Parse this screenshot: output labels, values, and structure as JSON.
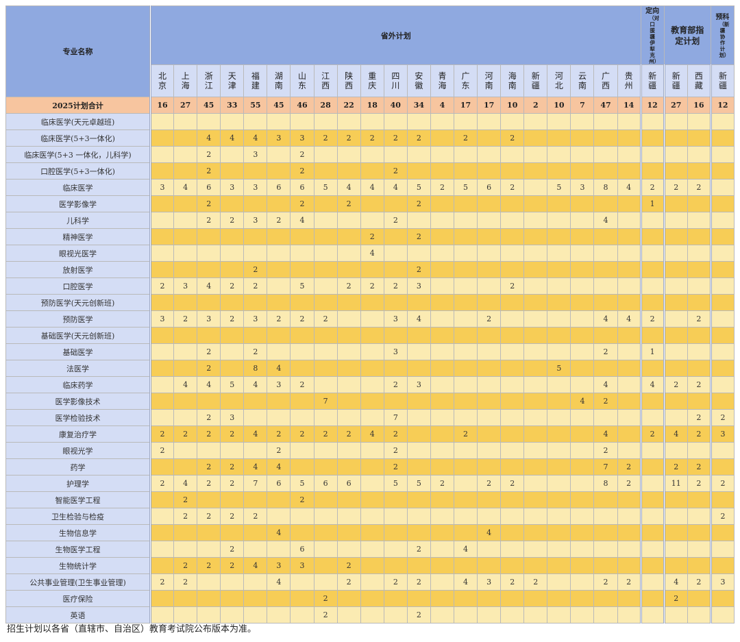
{
  "header": {
    "major_col": "专业名称",
    "group_outside": "省外计划",
    "group_targeted": "定向",
    "group_targeted_sub": "（对口援疆伊犁克州）",
    "group_ministry": "教育部指定计划",
    "group_prep": "预科",
    "group_prep_sub": "（新疆协作计划）",
    "provinces": [
      "北京",
      "上海",
      "浙江",
      "天津",
      "福建",
      "湖南",
      "山东",
      "江西",
      "陕西",
      "重庆",
      "四川",
      "安徽",
      "青海",
      "广东",
      "河南",
      "海南",
      "新疆",
      "河北",
      "云南",
      "广西",
      "贵州"
    ],
    "targeted_provinces": [
      "新疆"
    ],
    "ministry_provinces": [
      "新疆",
      "西藏"
    ],
    "prep_provinces": [
      "新疆"
    ]
  },
  "total": {
    "label": "2025计划合计",
    "values": [
      "16",
      "27",
      "45",
      "33",
      "55",
      "45",
      "46",
      "28",
      "22",
      "18",
      "40",
      "34",
      "4",
      "17",
      "17",
      "10",
      "2",
      "10",
      "7",
      "47",
      "14",
      "12",
      "27",
      "16",
      "12"
    ]
  },
  "rows": [
    {
      "name": "临床医学(天元卓越班)",
      "values": [
        "",
        "",
        "",
        "",
        "",
        "",
        "",
        "",
        "",
        "",
        "",
        "",
        "",
        "",
        "",
        "",
        "",
        "",
        "",
        "",
        "",
        "",
        "",
        "",
        ""
      ]
    },
    {
      "name": "临床医学(5+3一体化)",
      "values": [
        "",
        "",
        "4",
        "4",
        "4",
        "3",
        "3",
        "2",
        "2",
        "2",
        "2",
        "2",
        "",
        "2",
        "",
        "2",
        "",
        "",
        "",
        "",
        "",
        "",
        "",
        "",
        ""
      ]
    },
    {
      "name": "临床医学(5+3 一体化，儿科学)",
      "values": [
        "",
        "",
        "2",
        "",
        "3",
        "",
        "2",
        "",
        "",
        "",
        "",
        "",
        "",
        "",
        "",
        "",
        "",
        "",
        "",
        "",
        "",
        "",
        "",
        "",
        ""
      ]
    },
    {
      "name": "口腔医学(5+3一体化)",
      "values": [
        "",
        "",
        "2",
        "",
        "",
        "",
        "2",
        "",
        "",
        "",
        "2",
        "",
        "",
        "",
        "",
        "",
        "",
        "",
        "",
        "",
        "",
        "",
        "",
        "",
        ""
      ]
    },
    {
      "name": "临床医学",
      "values": [
        "3",
        "4",
        "6",
        "3",
        "3",
        "6",
        "6",
        "5",
        "4",
        "4",
        "4",
        "5",
        "2",
        "5",
        "6",
        "2",
        "",
        "5",
        "3",
        "8",
        "4",
        "2",
        "2",
        "2",
        ""
      ]
    },
    {
      "name": "医学影像学",
      "values": [
        "",
        "",
        "2",
        "",
        "",
        "",
        "2",
        "",
        "2",
        "",
        "",
        "2",
        "",
        "",
        "",
        "",
        "",
        "",
        "",
        "",
        "",
        "1",
        "",
        "",
        ""
      ]
    },
    {
      "name": "儿科学",
      "values": [
        "",
        "",
        "2",
        "2",
        "3",
        "2",
        "4",
        "",
        "",
        "",
        "2",
        "",
        "",
        "",
        "",
        "",
        "",
        "",
        "",
        "4",
        "",
        "",
        "",
        "",
        ""
      ]
    },
    {
      "name": "精神医学",
      "values": [
        "",
        "",
        "",
        "",
        "",
        "",
        "",
        "",
        "",
        "2",
        "",
        "2",
        "",
        "",
        "",
        "",
        "",
        "",
        "",
        "",
        "",
        "",
        "",
        "",
        ""
      ]
    },
    {
      "name": "眼视光医学",
      "values": [
        "",
        "",
        "",
        "",
        "",
        "",
        "",
        "",
        "",
        "4",
        "",
        "",
        "",
        "",
        "",
        "",
        "",
        "",
        "",
        "",
        "",
        "",
        "",
        "",
        ""
      ]
    },
    {
      "name": "放射医学",
      "values": [
        "",
        "",
        "",
        "",
        "2",
        "",
        "",
        "",
        "",
        "",
        "",
        "2",
        "",
        "",
        "",
        "",
        "",
        "",
        "",
        "",
        "",
        "",
        "",
        "",
        ""
      ]
    },
    {
      "name": "口腔医学",
      "values": [
        "2",
        "3",
        "4",
        "2",
        "2",
        "",
        "5",
        "",
        "2",
        "2",
        "2",
        "3",
        "",
        "",
        "",
        "2",
        "",
        "",
        "",
        "",
        "",
        "",
        "",
        "",
        ""
      ]
    },
    {
      "name": "预防医学(天元创新班)",
      "values": [
        "",
        "",
        "",
        "",
        "",
        "",
        "",
        "",
        "",
        "",
        "",
        "",
        "",
        "",
        "",
        "",
        "",
        "",
        "",
        "",
        "",
        "",
        "",
        "",
        ""
      ]
    },
    {
      "name": "预防医学",
      "values": [
        "3",
        "2",
        "3",
        "2",
        "3",
        "2",
        "2",
        "2",
        "",
        "",
        "3",
        "4",
        "",
        "",
        "2",
        "",
        "",
        "",
        "",
        "4",
        "4",
        "2",
        "",
        "2",
        ""
      ]
    },
    {
      "name": "基础医学(天元创新班)",
      "values": [
        "",
        "",
        "",
        "",
        "",
        "",
        "",
        "",
        "",
        "",
        "",
        "",
        "",
        "",
        "",
        "",
        "",
        "",
        "",
        "",
        "",
        "",
        "",
        "",
        ""
      ]
    },
    {
      "name": "基础医学",
      "values": [
        "",
        "",
        "2",
        "",
        "2",
        "",
        "",
        "",
        "",
        "",
        "3",
        "",
        "",
        "",
        "",
        "",
        "",
        "",
        "",
        "2",
        "",
        "1",
        "",
        "",
        ""
      ]
    },
    {
      "name": "法医学",
      "values": [
        "",
        "",
        "2",
        "",
        "8",
        "4",
        "",
        "",
        "",
        "",
        "",
        "",
        "",
        "",
        "",
        "",
        "",
        "5",
        "",
        "",
        "",
        "",
        "",
        "",
        ""
      ]
    },
    {
      "name": "临床药学",
      "values": [
        "",
        "4",
        "4",
        "5",
        "4",
        "3",
        "2",
        "",
        "",
        "",
        "2",
        "3",
        "",
        "",
        "",
        "",
        "",
        "",
        "",
        "4",
        "",
        "4",
        "2",
        "2",
        ""
      ]
    },
    {
      "name": "医学影像技术",
      "values": [
        "",
        "",
        "",
        "",
        "",
        "",
        "",
        "7",
        "",
        "",
        "",
        "",
        "",
        "",
        "",
        "",
        "",
        "",
        "4",
        "2",
        "",
        "",
        "",
        "",
        ""
      ]
    },
    {
      "name": "医学检验技术",
      "values": [
        "",
        "",
        "2",
        "3",
        "",
        "",
        "",
        "",
        "",
        "",
        "7",
        "",
        "",
        "",
        "",
        "",
        "",
        "",
        "",
        "",
        "",
        "",
        "",
        "2",
        "2"
      ]
    },
    {
      "name": "康复治疗学",
      "values": [
        "2",
        "2",
        "2",
        "2",
        "4",
        "2",
        "2",
        "2",
        "2",
        "4",
        "2",
        "",
        "",
        "2",
        "",
        "",
        "",
        "",
        "",
        "4",
        "",
        "2",
        "4",
        "2",
        "3"
      ]
    },
    {
      "name": "眼视光学",
      "values": [
        "2",
        "",
        "",
        "",
        "",
        "2",
        "",
        "",
        "",
        "",
        "2",
        "",
        "",
        "",
        "",
        "",
        "",
        "",
        "",
        "2",
        "",
        "",
        "",
        "",
        ""
      ]
    },
    {
      "name": "药学",
      "values": [
        "",
        "",
        "2",
        "2",
        "4",
        "4",
        "",
        "",
        "",
        "",
        "2",
        "",
        "",
        "",
        "",
        "",
        "",
        "",
        "",
        "7",
        "2",
        "",
        "2",
        "2",
        ""
      ]
    },
    {
      "name": "护理学",
      "values": [
        "2",
        "4",
        "2",
        "2",
        "7",
        "6",
        "5",
        "6",
        "6",
        "",
        "5",
        "5",
        "2",
        "",
        "2",
        "2",
        "",
        "",
        "",
        "8",
        "2",
        "",
        "11",
        "2",
        "2"
      ]
    },
    {
      "name": "智能医学工程",
      "values": [
        "",
        "2",
        "",
        "",
        "",
        "",
        "2",
        "",
        "",
        "",
        "",
        "",
        "",
        "",
        "",
        "",
        "",
        "",
        "",
        "",
        "",
        "",
        "",
        "",
        ""
      ]
    },
    {
      "name": "卫生检验与检疫",
      "values": [
        "",
        "2",
        "2",
        "2",
        "2",
        "",
        "",
        "",
        "",
        "",
        "",
        "",
        "",
        "",
        "",
        "",
        "",
        "",
        "",
        "",
        "",
        "",
        "",
        "",
        "2"
      ]
    },
    {
      "name": "生物信息学",
      "values": [
        "",
        "",
        "",
        "",
        "",
        "4",
        "",
        "",
        "",
        "",
        "",
        "",
        "",
        "",
        "4",
        "",
        "",
        "",
        "",
        "",
        "",
        "",
        "",
        "",
        ""
      ]
    },
    {
      "name": "生物医学工程",
      "values": [
        "",
        "",
        "",
        "2",
        "",
        "",
        "6",
        "",
        "",
        "",
        "",
        "2",
        "",
        "4",
        "",
        "",
        "",
        "",
        "",
        "",
        "",
        "",
        "",
        "",
        ""
      ]
    },
    {
      "name": "生物统计学",
      "values": [
        "",
        "2",
        "2",
        "2",
        "4",
        "3",
        "3",
        "",
        "2",
        "",
        "",
        "",
        "",
        "",
        "",
        "",
        "",
        "",
        "",
        "",
        "",
        "",
        "",
        "",
        ""
      ]
    },
    {
      "name": "公共事业管理(卫生事业管理)",
      "values": [
        "2",
        "2",
        "",
        "",
        "",
        "4",
        "",
        "",
        "2",
        "",
        "2",
        "2",
        "",
        "4",
        "3",
        "2",
        "2",
        "",
        "",
        "2",
        "2",
        "",
        "4",
        "2",
        "3"
      ]
    },
    {
      "name": "医疗保险",
      "values": [
        "",
        "",
        "",
        "",
        "",
        "",
        "",
        "2",
        "",
        "",
        "",
        "",
        "",
        "",
        "",
        "",
        "",
        "",
        "",
        "",
        "",
        "",
        "2",
        "",
        ""
      ]
    },
    {
      "name": "英语",
      "values": [
        "",
        "",
        "",
        "",
        "",
        "",
        "",
        "2",
        "",
        "",
        "",
        "2",
        "",
        "",
        "",
        "",
        "",
        "",
        "",
        "",
        "",
        "",
        "",
        "",
        ""
      ]
    }
  ],
  "footnote": "招生计划以各省（直辖市、自治区）教育考试院公布版本为准。"
}
